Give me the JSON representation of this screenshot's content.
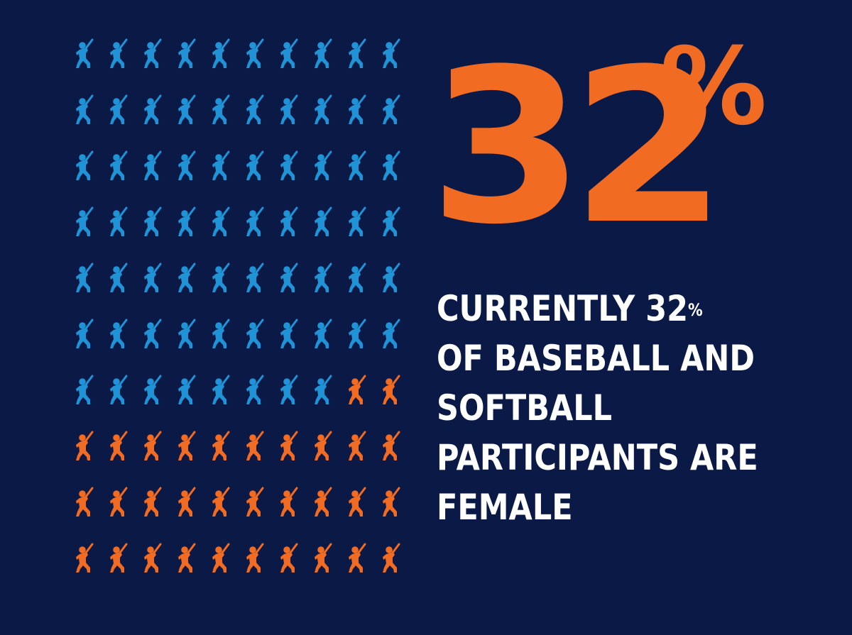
{
  "colors": {
    "background": "#0b1947",
    "male_icon": "#1f93d6",
    "female_icon": "#f26b22",
    "headline": "#f26b22",
    "caption_text": "#ffffff"
  },
  "headline": {
    "number": "32",
    "percent_sign": "%"
  },
  "caption": {
    "line1": "CURRENTLY 32",
    "line1_sup": "%",
    "line2": "OF BASEBALL AND",
    "line3": "SOFTBALL",
    "line4": "PARTICIPANTS ARE",
    "line5": "FEMALE"
  },
  "chart_data": {
    "type": "pictograph",
    "icon": "baseball-batter-icon",
    "rows": 10,
    "columns": 10,
    "total": 100,
    "fill_order": "row-major, blue first then orange",
    "series": [
      {
        "value": 68,
        "color": "#1f93d6"
      },
      {
        "value": 32,
        "color": "#f26b22"
      }
    ]
  }
}
